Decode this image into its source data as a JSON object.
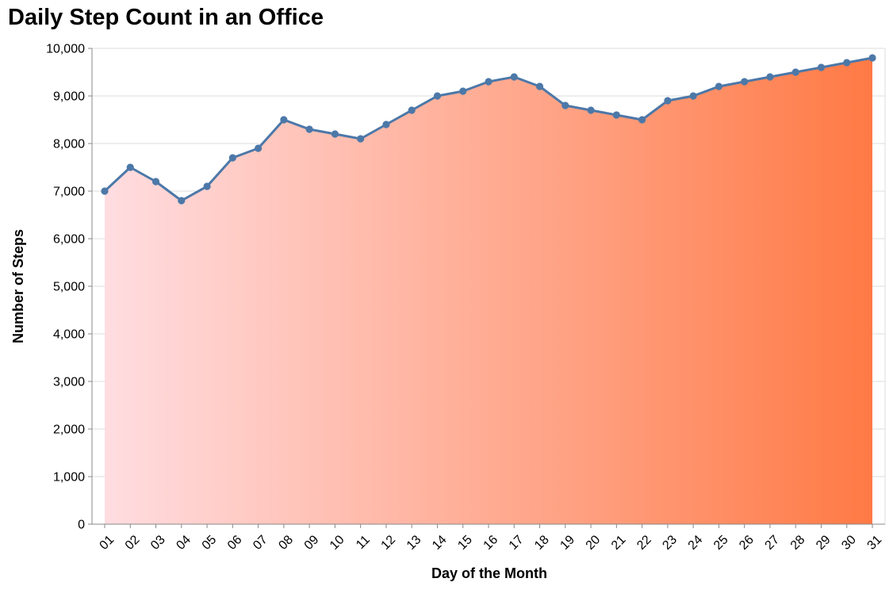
{
  "chart_data": {
    "type": "area",
    "title": "Daily Step Count in an Office",
    "xlabel": "Day of the Month",
    "ylabel": "Number of Steps",
    "categories": [
      "01",
      "02",
      "03",
      "04",
      "05",
      "06",
      "07",
      "08",
      "09",
      "10",
      "11",
      "12",
      "13",
      "14",
      "15",
      "16",
      "17",
      "18",
      "19",
      "20",
      "21",
      "22",
      "23",
      "24",
      "25",
      "26",
      "27",
      "28",
      "29",
      "30",
      "31"
    ],
    "values": [
      7000,
      7500,
      7200,
      6800,
      7100,
      7700,
      7900,
      8500,
      8300,
      8200,
      8100,
      8400,
      8700,
      9000,
      9100,
      9300,
      9400,
      9200,
      8800,
      8700,
      8600,
      8500,
      8900,
      9000,
      9200,
      9300,
      9400,
      9500,
      9600,
      9700,
      9800
    ],
    "ylim": [
      0,
      10000
    ],
    "yticks": [
      0,
      1000,
      2000,
      3000,
      4000,
      5000,
      6000,
      7000,
      8000,
      9000,
      10000
    ],
    "ytick_labels": [
      "0",
      "1,000",
      "2,000",
      "3,000",
      "4,000",
      "5,000",
      "6,000",
      "7,000",
      "8,000",
      "9,000",
      "10,000"
    ],
    "grid": true,
    "colors": {
      "line": "#4c78a8",
      "point": "#4c78a8",
      "area_gradient_start": "#ffdde1",
      "area_gradient_end": "#ff7a45"
    }
  }
}
